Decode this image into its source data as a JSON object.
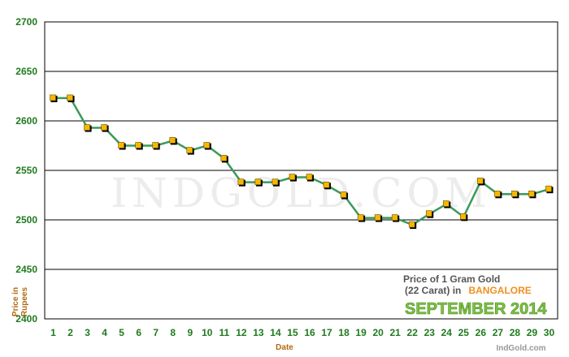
{
  "chart_data": {
    "type": "line",
    "watermark": "IndGold.com",
    "xlabel": "Date",
    "ylabel": "Price in Rupees",
    "ylim": [
      2400,
      2700
    ],
    "yticks": [
      2400,
      2450,
      2500,
      2550,
      2600,
      2650,
      2700
    ],
    "grid": true,
    "legend": {
      "line1": "Price of 1 Gram Gold",
      "line2_prefix": "(22 Carat) in",
      "city": "BANGALORE",
      "month": "SEPTEMBER 2014"
    },
    "credit": "IndGold.com",
    "x": [
      1,
      2,
      3,
      4,
      5,
      6,
      7,
      8,
      9,
      10,
      11,
      12,
      13,
      14,
      15,
      16,
      17,
      18,
      19,
      20,
      21,
      22,
      23,
      24,
      25,
      26,
      27,
      28,
      29,
      30
    ],
    "series": [
      {
        "values": [
          2623,
          2623,
          2593,
          2593,
          2575,
          2575,
          2575,
          2580,
          2570,
          2575,
          2562,
          2538,
          2538,
          2538,
          2543,
          2543,
          2535,
          2525,
          2502,
          2502,
          2502,
          2495,
          2506,
          2516,
          2503,
          2539,
          2526,
          2526,
          2526,
          2531
        ]
      }
    ],
    "colors": {
      "line": "#3a9a5a",
      "marker_fill": "#f5b800",
      "marker_shadow": "#000000",
      "tick_text": "#1f7a1f"
    }
  }
}
